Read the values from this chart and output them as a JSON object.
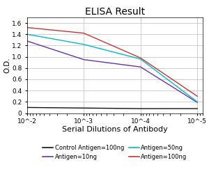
{
  "title": "ELISA Result",
  "ylabel": "O.D.",
  "xlabel": "Serial Dilutions of Antibody",
  "x_values": [
    0.01,
    0.001,
    0.0001,
    1e-05
  ],
  "xtick_labels": [
    "10^-2",
    "10^-3",
    "10^-4",
    "10^-5"
  ],
  "ylim": [
    0,
    1.7
  ],
  "yticks": [
    0,
    0.2,
    0.4,
    0.6,
    0.8,
    1.0,
    1.2,
    1.4,
    1.6
  ],
  "lines": [
    {
      "label": "Control Antigen=100ng",
      "color": "#111111",
      "y_values": [
        0.1,
        0.09,
        0.08,
        0.08
      ]
    },
    {
      "label": "Antigen=10ng",
      "color": "#6633aa",
      "y_values": [
        1.28,
        0.95,
        0.82,
        0.19
      ]
    },
    {
      "label": "Antigen=50ng",
      "color": "#00bbcc",
      "y_values": [
        1.4,
        1.22,
        0.96,
        0.2
      ]
    },
    {
      "label": "Antigen=100ng",
      "color": "#cc3333",
      "y_values": [
        1.52,
        1.42,
        0.98,
        0.3
      ]
    }
  ],
  "background_color": "#ffffff",
  "grid_color": "#bbbbbb",
  "title_fontsize": 10,
  "ylabel_fontsize": 7.5,
  "xlabel_fontsize": 8,
  "tick_fontsize": 6.5,
  "legend_fontsize": 6
}
